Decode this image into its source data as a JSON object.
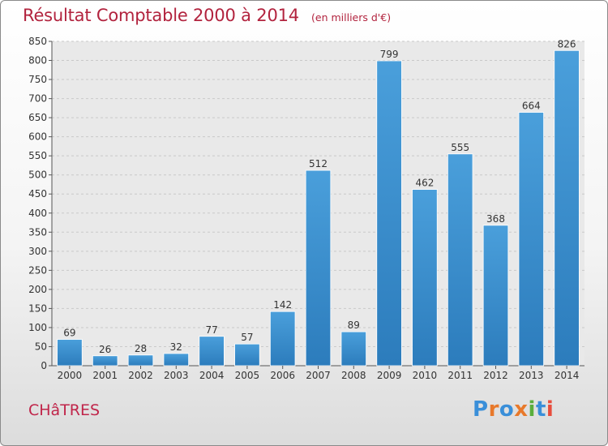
{
  "chart_data": {
    "type": "bar",
    "title": "Résultat Comptable 2000 à 2014",
    "unit": "(en milliers d'€)",
    "categories": [
      "2000",
      "2001",
      "2002",
      "2003",
      "2004",
      "2005",
      "2006",
      "2007",
      "2008",
      "2009",
      "2010",
      "2011",
      "2012",
      "2013",
      "2014"
    ],
    "values": [
      69,
      26,
      28,
      32,
      77,
      57,
      142,
      512,
      89,
      799,
      462,
      555,
      368,
      664,
      826
    ],
    "y_ticks": [
      0,
      50,
      100,
      150,
      200,
      250,
      300,
      350,
      400,
      450,
      500,
      550,
      600,
      650,
      700,
      750,
      800,
      850
    ],
    "ylim": [
      0,
      850
    ],
    "grid": true,
    "bar_color": "#4a9fdb",
    "bar_color_dark": "#2c7cbc",
    "xlabel": "",
    "ylabel": ""
  },
  "location": "CHâTRES",
  "brand": {
    "letters": [
      "P",
      "r",
      "o",
      "x",
      "i",
      "t",
      "i"
    ],
    "colors": [
      "#3a8fd9",
      "#e8792b",
      "#3a8fd9",
      "#e8792b",
      "#5aae3c",
      "#3a8fd9",
      "#e84d3d"
    ]
  }
}
